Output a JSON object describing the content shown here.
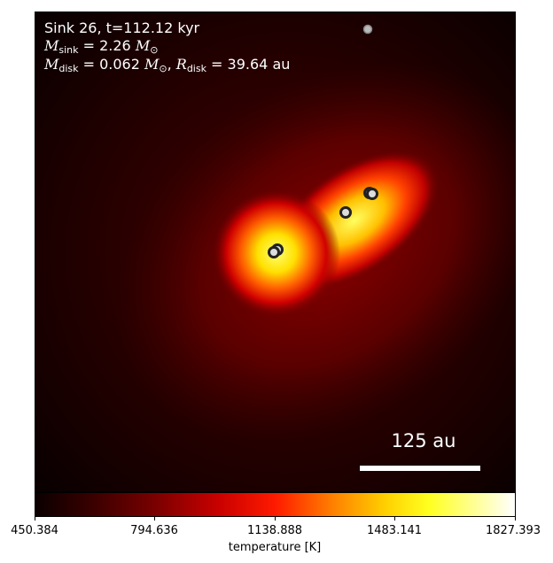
{
  "annotation": {
    "line1": "Sink 26, t=112.12 kyr",
    "msink_sym": "M",
    "msink_sub": "sink",
    "msink_eq": " = 2.26 ",
    "msun_sym": "M",
    "mdisk_sym": "M",
    "mdisk_sub": "disk",
    "mdisk_eq": " = 0.062 ",
    "rdisk_sym": "R",
    "rdisk_sub": "disk",
    "rdisk_eq": " = 39.64 au"
  },
  "scale_bar": {
    "label": "125 au"
  },
  "colorbar": {
    "label": "temperature [K]",
    "ticks": [
      "450.384",
      "794.636",
      "1138.888",
      "1483.141",
      "1827.393"
    ],
    "cmap": "hot"
  },
  "colors": {
    "background": "#0a0000",
    "hot_core": "#ffff60",
    "sink_ring": "#222222",
    "sink_fill": "#dddddd"
  },
  "sinks_count": 6
}
